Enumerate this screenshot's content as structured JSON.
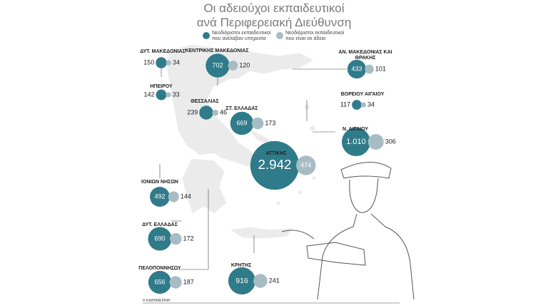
{
  "chart_data": {
    "type": "bubble",
    "title": "Οι αδειούχοι εκπαιδευτικοί",
    "subtitle": "ανά Περιφερειακή Διεύθυνση",
    "source": "Η ΚΑΘΗΜΕΡΙΝΗ",
    "categories": [
      "ΔΥΤ. ΜΑΚΕΔΟΝΙΑΣ",
      "ΚΕΝΤΡΙΚΗΣ ΜΑΚΕΔΟΝΙΑΣ",
      "ΑΝ. ΜΑΚΕΔΟΝΙΑΣ ΚΑΙ ΘΡΑΚΗΣ",
      "ΗΠΕΙΡΟΥ",
      "ΘΕΣΣΑΛΙΑΣ",
      "ΣΤ. ΕΛΛΑΔΑΣ",
      "ΒΟΡΕΙΟΥ ΑΙΓΑΙΟΥ",
      "Ν. ΑΙΓΑΙΟΥ",
      "ΑΤΤΙΚΗΣ",
      "ΙΟΝΙΩΝ ΝΗΣΩΝ",
      "ΔΥΤ. ΕΛΛΑΔΑΣ",
      "ΠΕΛΟΠΟΝΝΗΣΟΥ",
      "ΚΡΗΤΗΣ"
    ],
    "series": [
      {
        "name": "Νεοδιόριστοι εκπαιδευτικοί που ανέλαβαν υπηρεσία",
        "color": "#2f7b8a",
        "values": [
          150,
          702,
          433,
          142,
          239,
          669,
          117,
          1010,
          2942,
          492,
          690,
          656,
          916
        ],
        "value_labels": [
          "150",
          "702",
          "433",
          "142",
          "239",
          "669",
          "117",
          "1.010",
          "2.942",
          "492",
          "690",
          "656",
          "916"
        ]
      },
      {
        "name": "Νεοδιόριστοι εκπαιδευτικοί που είναι σε άδεια",
        "color": "#a8bcc4",
        "values": [
          34,
          120,
          101,
          33,
          46,
          173,
          34,
          306,
          474,
          144,
          172,
          187,
          241
        ]
      }
    ]
  }
}
